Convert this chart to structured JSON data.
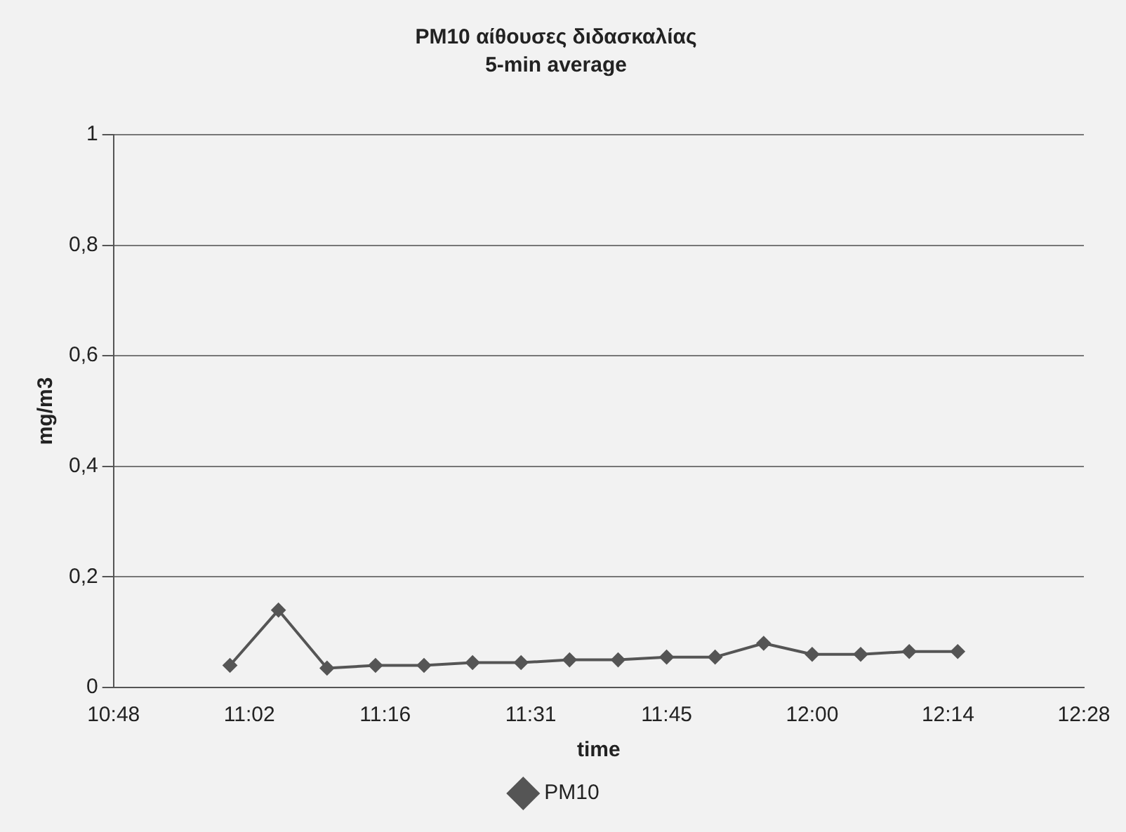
{
  "chart_data": {
    "type": "line",
    "title": "PM10 αίθουσες διδασκαλίας",
    "subtitle": "5-min average",
    "xlabel": "time",
    "ylabel": "mg/m3",
    "x": [
      11,
      11.0833,
      11.1667,
      11.25,
      11.3333,
      11.4167,
      11.5,
      11.5833,
      11.6667,
      11.75,
      11.8333,
      11.9167,
      12,
      12.0833,
      12.1667,
      12.25
    ],
    "series": [
      {
        "name": "PM10",
        "color": "#555555",
        "values": [
          0.04,
          0.14,
          0.035,
          0.04,
          0.04,
          0.045,
          0.045,
          0.05,
          0.05,
          0.055,
          0.055,
          0.08,
          0.06,
          0.06,
          0.065,
          0.065
        ]
      }
    ],
    "xlim": [
      10.8,
      12.4667
    ],
    "xticks": [
      {
        "value": 10.8,
        "label": "10:48"
      },
      {
        "value": 11.0333,
        "label": "11:02"
      },
      {
        "value": 11.2667,
        "label": "11:16"
      },
      {
        "value": 11.5167,
        "label": "11:31"
      },
      {
        "value": 11.75,
        "label": "11:45"
      },
      {
        "value": 12,
        "label": "12:00"
      },
      {
        "value": 12.2333,
        "label": "12:14"
      },
      {
        "value": 12.4667,
        "label": "12:28"
      }
    ],
    "ylim": [
      0,
      1
    ],
    "yticks": [
      0,
      {
        "value": 0.2,
        "label": "0,2"
      },
      {
        "value": 0.4,
        "label": "0,4"
      },
      {
        "value": 0.6,
        "label": "0,6"
      },
      {
        "value": 0.8,
        "label": "0,8"
      },
      1
    ],
    "grid": "y",
    "legend": "bottom",
    "marker": "diamond",
    "line_style": "solid"
  }
}
